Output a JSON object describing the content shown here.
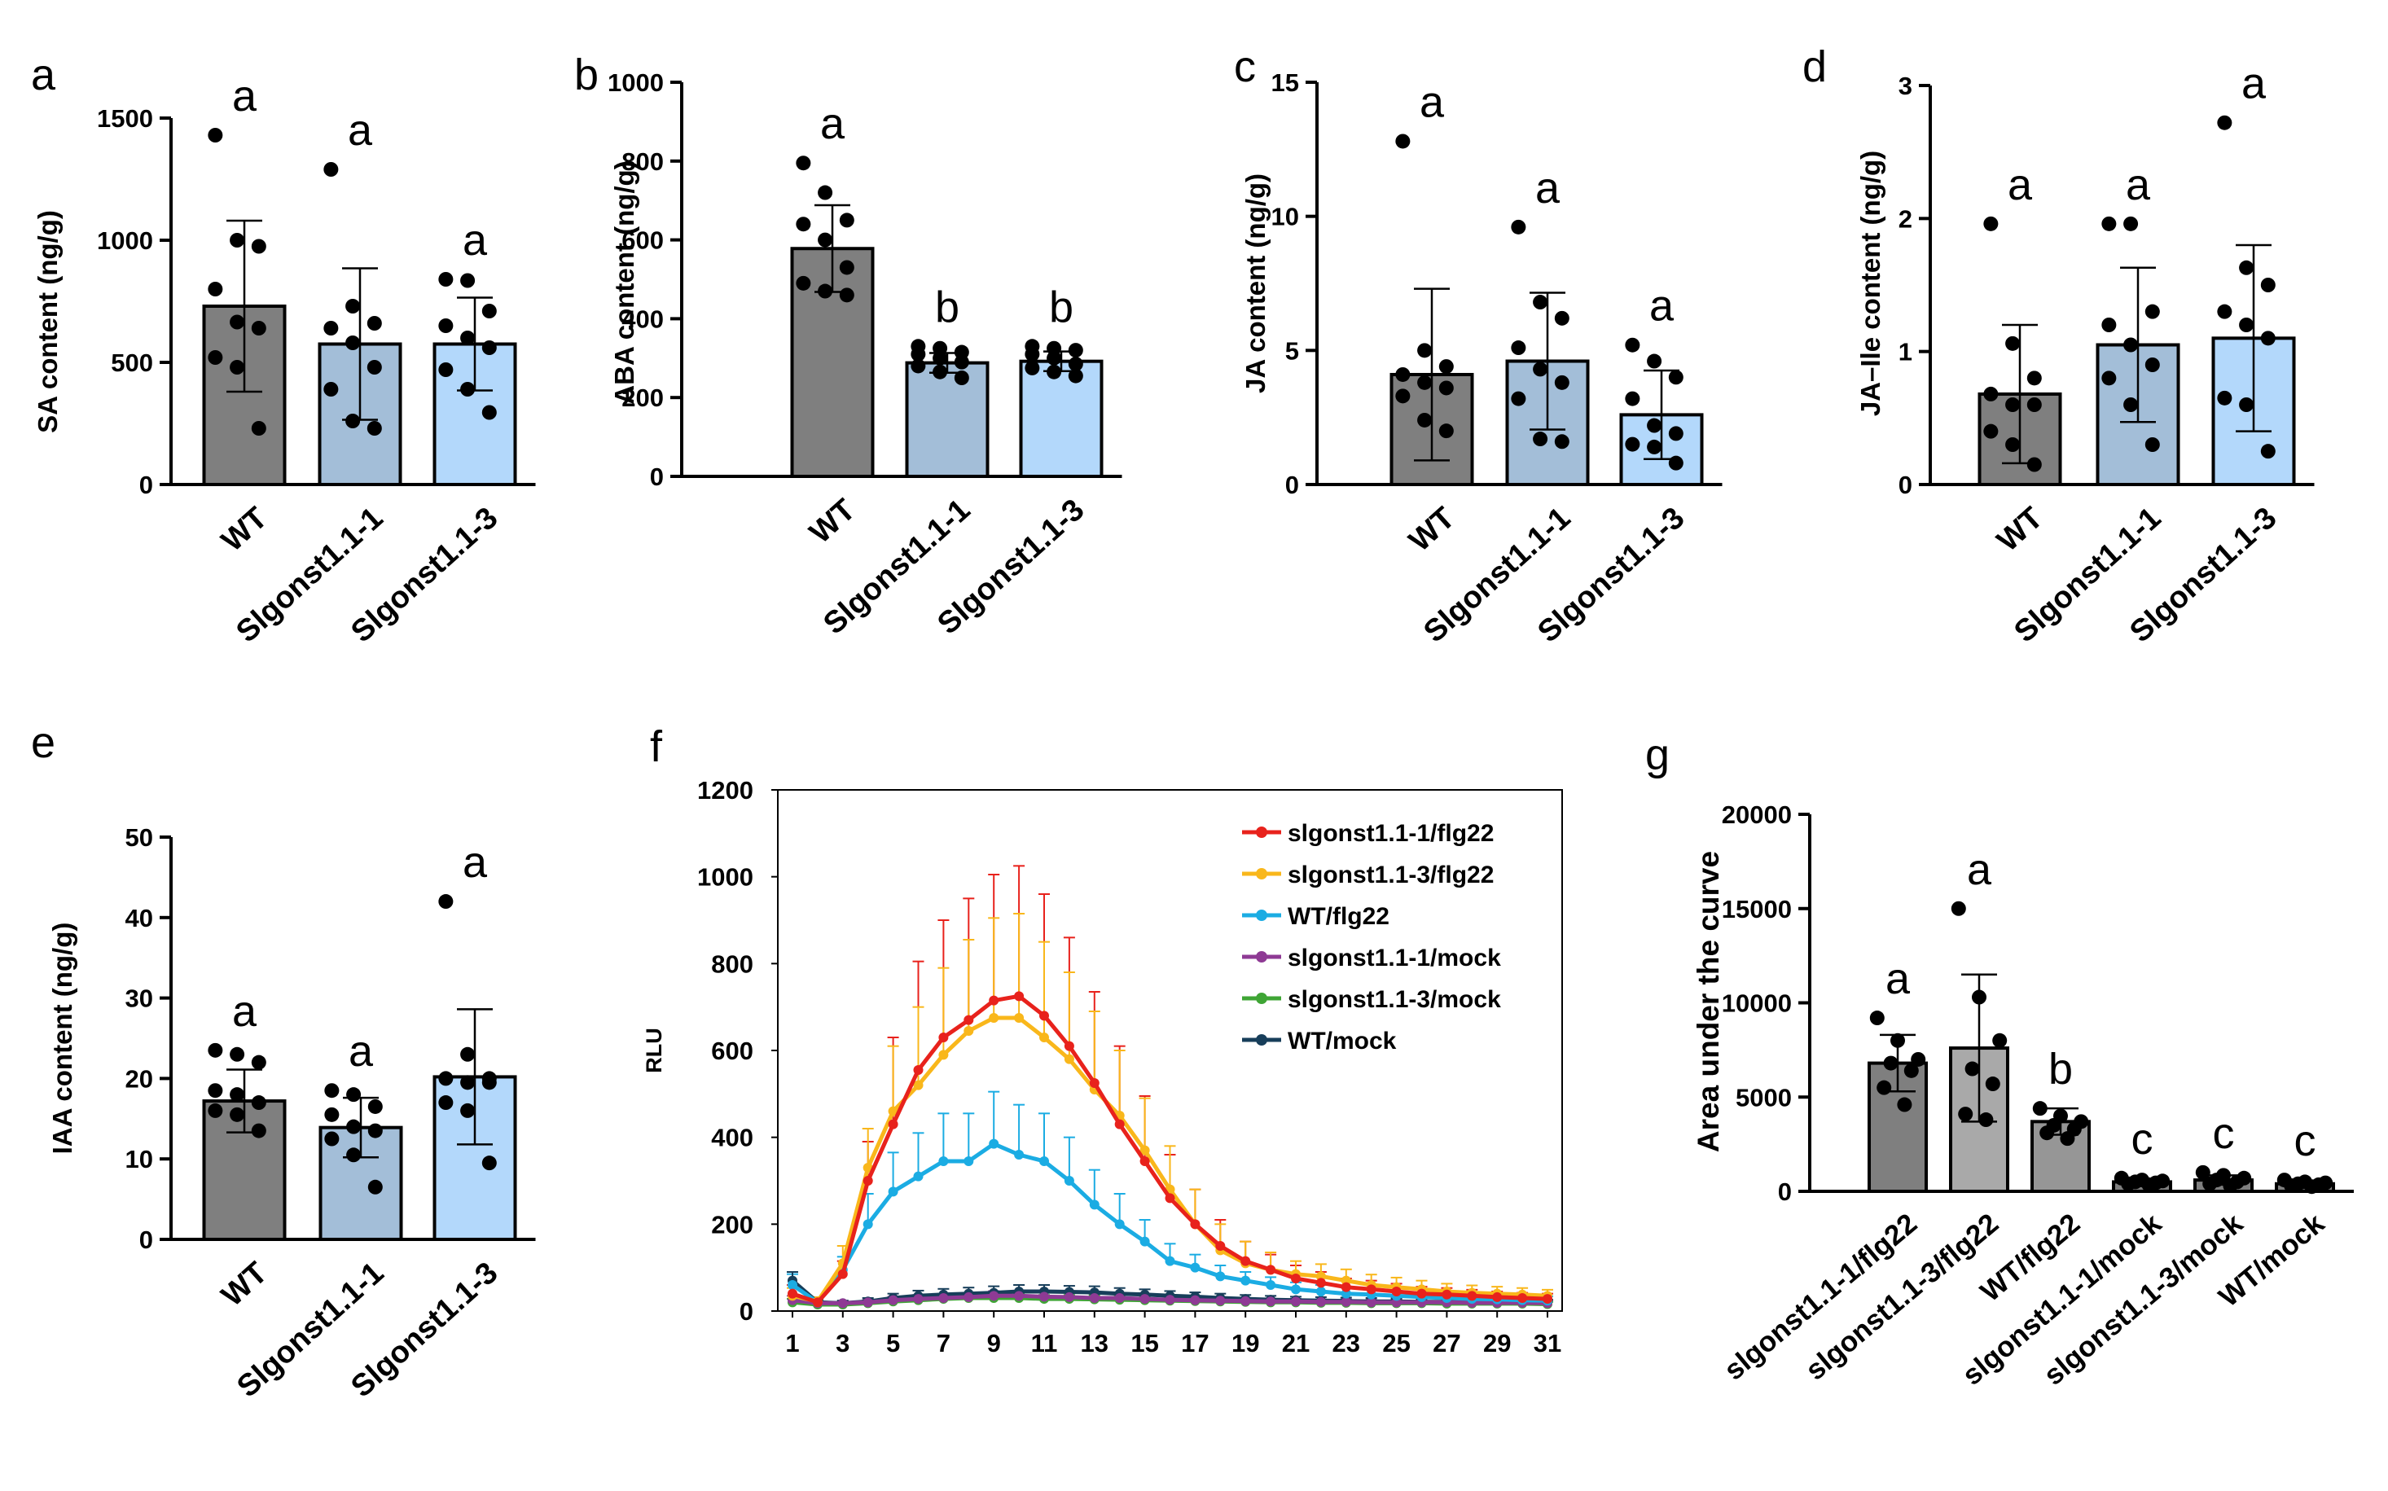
{
  "chart_data": [
    {
      "id": "a",
      "panel_label": "a",
      "type": "bar",
      "ylabel": "SA content (ng/g)",
      "ylim": [
        0,
        1500
      ],
      "yticks": [
        "0",
        "500",
        "1000",
        "1500"
      ],
      "categories": [
        "WT",
        "Slgonst1.1-1",
        "Slgonst1.1-3"
      ],
      "values": [
        730,
        575,
        575
      ],
      "sd": [
        350,
        310,
        190
      ],
      "significance": [
        "a",
        "a",
        "a"
      ],
      "points": [
        [
          1430,
          1000,
          975,
          800,
          665,
          640,
          520,
          480,
          230
        ],
        [
          1290,
          730,
          660,
          640,
          580,
          480,
          390,
          260,
          230
        ],
        [
          840,
          835,
          710,
          650,
          600,
          560,
          470,
          390,
          295
        ]
      ],
      "colors": [
        "#7f7f7f",
        "#a3bed8",
        "#b3d8fb"
      ]
    },
    {
      "id": "b",
      "panel_label": "b",
      "type": "bar",
      "ylabel": "ABA content (ng/g)",
      "ylim": [
        0,
        1000
      ],
      "yticks": [
        "0",
        "200",
        "400",
        "600",
        "800",
        "1000"
      ],
      "categories": [
        "WT",
        "Slgonst1.1-1",
        "Slgonst1.1-3"
      ],
      "values": [
        578,
        288,
        292
      ],
      "sd": [
        110,
        25,
        25
      ],
      "significance": [
        "a",
        "b",
        "b"
      ],
      "points": [
        [
          795,
          720,
          650,
          640,
          600,
          530,
          490,
          470,
          460
        ],
        [
          330,
          325,
          315,
          310,
          300,
          290,
          280,
          265,
          250
        ],
        [
          330,
          325,
          320,
          310,
          300,
          285,
          275,
          265,
          255
        ]
      ],
      "colors": [
        "#7f7f7f",
        "#a3bed8",
        "#b3d8fb"
      ]
    },
    {
      "id": "c",
      "panel_label": "c",
      "type": "bar",
      "ylabel": "JA content (ng/g)",
      "ylim": [
        0,
        15
      ],
      "yticks": [
        "0",
        "5",
        "10",
        "15"
      ],
      "categories": [
        "WT",
        "Slgonst1.1-1",
        "Slgonst1.1-3"
      ],
      "values": [
        4.1,
        4.6,
        2.6
      ],
      "sd": [
        3.2,
        2.55,
        1.65
      ],
      "significance": [
        "a",
        "a",
        "a"
      ],
      "points": [
        [
          12.8,
          5.0,
          4.4,
          4.1,
          3.8,
          3.6,
          3.3,
          2.4,
          2.0
        ],
        [
          9.6,
          6.8,
          6.2,
          5.1,
          4.3,
          3.8,
          3.2,
          1.7,
          1.6
        ],
        [
          5.2,
          4.6,
          4.0,
          3.2,
          2.2,
          1.9,
          1.5,
          1.4,
          0.8
        ]
      ],
      "colors": [
        "#7f7f7f",
        "#a3bed8",
        "#b3d8fb"
      ]
    },
    {
      "id": "d",
      "panel_label": "d",
      "type": "bar",
      "ylabel": "JA–Ile content (ng/g)",
      "ylim": [
        0,
        3
      ],
      "yticks": [
        "0",
        "1",
        "2",
        "3"
      ],
      "categories": [
        "WT",
        "Slgonst1.1-1",
        "Slgonst1.1-3"
      ],
      "values": [
        0.68,
        1.05,
        1.1
      ],
      "sd": [
        0.52,
        0.58,
        0.7
      ],
      "significance": [
        "a",
        "a",
        "a"
      ],
      "points": [
        [
          1.96,
          1.06,
          0.8,
          0.68,
          0.6,
          0.6,
          0.4,
          0.3,
          0.15
        ],
        [
          1.96,
          1.96,
          1.3,
          1.2,
          1.05,
          0.9,
          0.8,
          0.6,
          0.3
        ],
        [
          2.72,
          1.63,
          1.5,
          1.3,
          1.2,
          1.1,
          0.65,
          0.6,
          0.25
        ]
      ],
      "colors": [
        "#7f7f7f",
        "#a3bed8",
        "#b3d8fb"
      ]
    },
    {
      "id": "e",
      "panel_label": "e",
      "type": "bar",
      "ylabel": "IAA content (ng/g)",
      "ylim": [
        0,
        50
      ],
      "yticks": [
        "0",
        "10",
        "20",
        "30",
        "40",
        "50"
      ],
      "categories": [
        "WT",
        "Slgonst1.1-1",
        "Slgonst1.1-3"
      ],
      "values": [
        17.2,
        13.9,
        20.2
      ],
      "sd": [
        3.9,
        3.7,
        8.4
      ],
      "significance": [
        "a",
        "a",
        "a"
      ],
      "points": [
        [
          23.5,
          23.0,
          22.0,
          18.5,
          18.0,
          17.0,
          16.0,
          15.5,
          13.5
        ],
        [
          18.5,
          18.0,
          16.5,
          15.5,
          14.0,
          13.5,
          12.5,
          10.5,
          6.5
        ],
        [
          42.0,
          23.0,
          20.0,
          20.0,
          19.5,
          19.5,
          17.0,
          16.0,
          9.5
        ]
      ],
      "colors": [
        "#7f7f7f",
        "#a3bed8",
        "#b3d8fb"
      ]
    },
    {
      "id": "f",
      "panel_label": "f",
      "type": "line",
      "ylabel": "RLU",
      "ylim": [
        0,
        1200
      ],
      "yticks": [
        "0",
        "200",
        "400",
        "600",
        "800",
        "1000",
        "1200"
      ],
      "xlim": [
        1,
        31
      ],
      "xticks": [
        "1",
        "3",
        "5",
        "7",
        "9",
        "11",
        "13",
        "15",
        "17",
        "19",
        "21",
        "23",
        "25",
        "27",
        "29",
        "31"
      ],
      "x": [
        1,
        2,
        3,
        4,
        5,
        6,
        7,
        8,
        9,
        10,
        11,
        12,
        13,
        14,
        15,
        16,
        17,
        18,
        19,
        20,
        21,
        22,
        23,
        24,
        25,
        26,
        27,
        28,
        29,
        30,
        31
      ],
      "series": [
        {
          "name": "slgonst1.1-1/flg22",
          "color": "#e8221c",
          "values": [
            40,
            20,
            85,
            300,
            430,
            555,
            630,
            670,
            715,
            725,
            680,
            610,
            525,
            430,
            345,
            260,
            200,
            150,
            115,
            95,
            75,
            65,
            55,
            50,
            45,
            40,
            38,
            35,
            32,
            30,
            28
          ],
          "err": [
            20,
            10,
            30,
            90,
            200,
            250,
            270,
            280,
            290,
            300,
            280,
            250,
            210,
            180,
            150,
            100,
            80,
            60,
            45,
            35,
            30,
            25,
            20,
            20,
            18,
            16,
            15,
            14,
            13,
            12,
            12
          ]
        },
        {
          "name": "slgonst1.1-3/flg22",
          "color": "#f9b71b",
          "values": [
            35,
            22,
            110,
            330,
            460,
            520,
            590,
            645,
            675,
            675,
            630,
            580,
            510,
            450,
            370,
            280,
            200,
            140,
            110,
            95,
            85,
            80,
            70,
            60,
            55,
            50,
            45,
            42,
            40,
            38,
            35
          ],
          "err": [
            18,
            10,
            40,
            90,
            150,
            180,
            200,
            210,
            230,
            240,
            220,
            200,
            180,
            150,
            120,
            100,
            80,
            60,
            50,
            40,
            30,
            28,
            26,
            24,
            22,
            20,
            18,
            17,
            16,
            15,
            14
          ]
        },
        {
          "name": "WT/flg22",
          "color": "#1bace3",
          "values": [
            60,
            20,
            95,
            200,
            275,
            310,
            345,
            345,
            385,
            360,
            345,
            300,
            245,
            200,
            160,
            115,
            100,
            80,
            70,
            60,
            50,
            45,
            40,
            38,
            35,
            32,
            30,
            28,
            27,
            25,
            24
          ],
          "err": [
            25,
            10,
            30,
            70,
            90,
            100,
            110,
            110,
            120,
            115,
            110,
            100,
            80,
            70,
            50,
            40,
            30,
            25,
            20,
            18,
            16,
            15,
            14,
            13,
            12,
            11,
            10,
            10,
            10,
            10,
            10
          ]
        },
        {
          "name": "slgonst1.1-1/mock",
          "color": "#8e3a94",
          "values": [
            25,
            18,
            18,
            20,
            25,
            28,
            30,
            32,
            35,
            35,
            33,
            32,
            30,
            30,
            28,
            26,
            25,
            24,
            23,
            22,
            22,
            21,
            21,
            20,
            20,
            20,
            20,
            19,
            19,
            19,
            18
          ],
          "err": [
            10,
            5,
            5,
            6,
            8,
            9,
            10,
            10,
            11,
            11,
            10,
            10,
            9,
            9,
            8,
            8,
            7,
            7,
            7,
            6,
            6,
            6,
            6,
            6,
            6,
            6,
            6,
            5,
            5,
            5,
            5
          ]
        },
        {
          "name": "slgonst1.1-3/mock",
          "color": "#3fa535",
          "values": [
            20,
            15,
            15,
            18,
            22,
            25,
            28,
            30,
            30,
            30,
            28,
            28,
            27,
            26,
            25,
            24,
            23,
            22,
            21,
            20,
            20,
            19,
            19,
            18,
            18,
            18,
            17,
            17,
            17,
            17,
            16
          ],
          "err": [
            8,
            5,
            5,
            6,
            7,
            8,
            9,
            10,
            10,
            10,
            9,
            9,
            9,
            8,
            8,
            8,
            7,
            7,
            7,
            6,
            6,
            6,
            6,
            6,
            6,
            5,
            5,
            5,
            5,
            5,
            5
          ]
        },
        {
          "name": "WT/mock",
          "color": "#173e5a",
          "values": [
            70,
            20,
            18,
            22,
            30,
            35,
            38,
            40,
            42,
            45,
            45,
            44,
            43,
            40,
            38,
            35,
            33,
            30,
            28,
            26,
            25,
            24,
            23,
            22,
            22,
            21,
            21,
            20,
            20,
            20,
            19
          ],
          "err": [
            20,
            6,
            6,
            8,
            10,
            12,
            13,
            14,
            15,
            15,
            15,
            14,
            14,
            13,
            12,
            11,
            10,
            10,
            9,
            9,
            8,
            8,
            8,
            8,
            7,
            7,
            7,
            7,
            7,
            7,
            7
          ]
        }
      ]
    },
    {
      "id": "g",
      "panel_label": "g",
      "type": "bar",
      "ylabel": "Area under the curve",
      "ylim": [
        0,
        20000
      ],
      "yticks": [
        "0",
        "5000",
        "10000",
        "15000",
        "20000"
      ],
      "categories": [
        "slgonst1.1-1/flg22",
        "slgonst1.1-3/flg22",
        "WT/flg22",
        "slgonst1.1-1/mock",
        "slgonst1.1-3/mock",
        "WT/mock"
      ],
      "values": [
        6800,
        7600,
        3700,
        500,
        600,
        400
      ],
      "sd": [
        1500,
        3900,
        700,
        150,
        250,
        150
      ],
      "significance": [
        "a",
        "a",
        "b",
        "c",
        "c",
        "c"
      ],
      "points": [
        [
          9200,
          8000,
          7000,
          6800,
          6400,
          5500,
          4600
        ],
        [
          15000,
          10300,
          8000,
          6500,
          5700,
          4100,
          3800
        ],
        [
          4400,
          4000,
          3700,
          3500,
          3300,
          3100,
          2800
        ],
        [
          700,
          600,
          550,
          500,
          450,
          400,
          350
        ],
        [
          1000,
          850,
          700,
          600,
          500,
          400,
          300
        ],
        [
          600,
          500,
          450,
          400,
          350,
          300,
          250
        ]
      ],
      "colors": [
        "#7f7f7f",
        "#a9a9a9",
        "#969696",
        "#7f7f7f",
        "#7f7f7f",
        "#7f7f7f"
      ]
    }
  ]
}
